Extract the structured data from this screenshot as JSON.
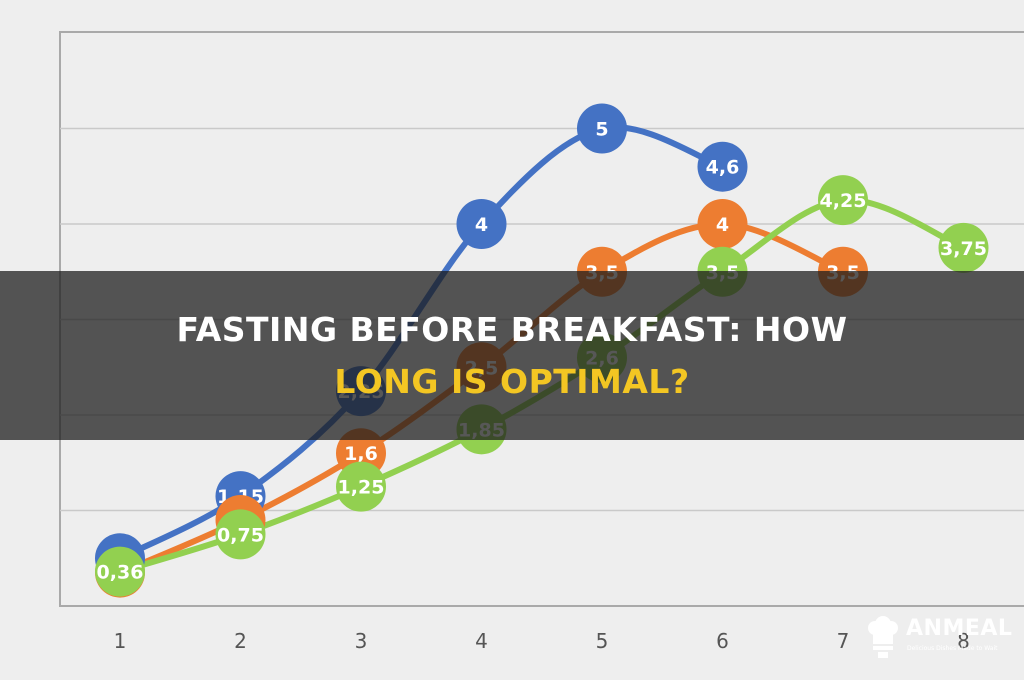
{
  "chart_data": {
    "type": "line",
    "title": "",
    "xlabel": "",
    "ylabel": "",
    "x": [
      1,
      2,
      3,
      4,
      5,
      6,
      7,
      8
    ],
    "x_tick_labels": [
      "1",
      "2",
      "3",
      "4",
      "5",
      "6",
      "7",
      "8"
    ],
    "ylim": [
      0,
      5.8
    ],
    "grid": true,
    "legend": "none",
    "data_labels": true,
    "series": [
      {
        "color": "#4472c4",
        "x": [
          1,
          2,
          3,
          4,
          5,
          6
        ],
        "values": [
          0.5,
          1.15,
          2.25,
          4,
          5,
          4.6
        ],
        "labels": [
          "0,5",
          "1,15",
          "2,25",
          "4",
          "5",
          "4,6"
        ]
      },
      {
        "color": "#ed7d31",
        "x": [
          1,
          2,
          3,
          4,
          5,
          6,
          7
        ],
        "values": [
          0.35,
          0.9,
          1.6,
          2.5,
          3.5,
          4,
          3.5
        ],
        "labels": [
          "0,35",
          "0,9",
          "1,6",
          "2,5",
          "3,5",
          "4",
          "3,5"
        ]
      },
      {
        "color": "#92d050",
        "x": [
          1,
          2,
          3,
          4,
          5,
          6,
          7,
          8
        ],
        "values": [
          0.36,
          0.75,
          1.25,
          1.85,
          2.6,
          3.5,
          4.25,
          3.75
        ],
        "labels": [
          "0,36",
          "0,75",
          "1,25",
          "1,85",
          "2,6",
          "3,5",
          "4,25",
          "3,75"
        ]
      }
    ]
  },
  "banner": {
    "line1": "Fasting Before Breakfast: How",
    "line2": "Long is Optimal?"
  },
  "logo": {
    "name": "ANMEAL",
    "tagline": "Delicious Dishes Made to Wait"
  }
}
